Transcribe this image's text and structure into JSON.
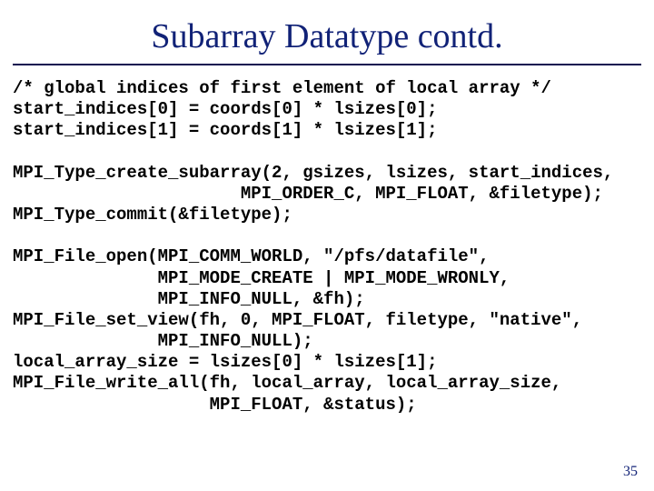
{
  "title": "Subarray Datatype contd.",
  "page_number": "35",
  "colors": {
    "title_color": "#112277",
    "rule_color": "#101050",
    "code_color": "#000000",
    "background": "#ffffff",
    "pagenum_color": "#112277"
  },
  "typography": {
    "title_font": "Times New Roman",
    "title_fontsize_pt": 29,
    "code_font": "Courier New",
    "code_fontsize_pt": 14,
    "code_bold": true
  },
  "code_lines": [
    "/* global indices of first element of local array */",
    "start_indices[0] = coords[0] * lsizes[0];",
    "start_indices[1] = coords[1] * lsizes[1];",
    "",
    "MPI_Type_create_subarray(2, gsizes, lsizes, start_indices,",
    "                      MPI_ORDER_C, MPI_FLOAT, &filetype);",
    "MPI_Type_commit(&filetype);",
    "",
    "MPI_File_open(MPI_COMM_WORLD, \"/pfs/datafile\",",
    "              MPI_MODE_CREATE | MPI_MODE_WRONLY,",
    "              MPI_INFO_NULL, &fh);",
    "MPI_File_set_view(fh, 0, MPI_FLOAT, filetype, \"native\",",
    "              MPI_INFO_NULL);",
    "local_array_size = lsizes[0] * lsizes[1];",
    "MPI_File_write_all(fh, local_array, local_array_size,",
    "                   MPI_FLOAT, &status);"
  ]
}
